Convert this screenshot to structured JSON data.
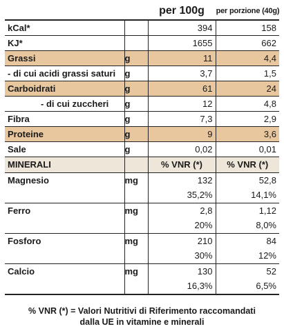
{
  "header": {
    "per100": "per 100g",
    "perPortion": "per porzione (40g)"
  },
  "nutrients": [
    {
      "name": "kCal*",
      "unit": "",
      "v100": "394",
      "vPortion": "158",
      "highlight": false,
      "indent": false
    },
    {
      "name": "KJ*",
      "unit": "",
      "v100": "1655",
      "vPortion": "662",
      "highlight": false,
      "indent": false
    },
    {
      "name": "Grassi",
      "unit": "g",
      "v100": "11",
      "vPortion": "4,4",
      "highlight": true,
      "indent": false
    },
    {
      "name": "- di cui acidi grassi saturi",
      "unit": "g",
      "v100": "3,7",
      "vPortion": "1,5",
      "highlight": false,
      "indent": false
    },
    {
      "name": "Carboidrati",
      "unit": "g",
      "v100": "61",
      "vPortion": "24",
      "highlight": true,
      "indent": false
    },
    {
      "name": "- di cui zuccheri",
      "unit": "g",
      "v100": "12",
      "vPortion": "4,8",
      "highlight": false,
      "indent": true
    },
    {
      "name": "Fibra",
      "unit": "g",
      "v100": "7,3",
      "vPortion": "2,9",
      "highlight": false,
      "indent": false
    },
    {
      "name": "Proteine",
      "unit": "g",
      "v100": "9",
      "vPortion": "3,6",
      "highlight": true,
      "indent": false
    },
    {
      "name": "Sale",
      "unit": "g",
      "v100": "0,02",
      "vPortion": "0,01",
      "highlight": false,
      "indent": false
    }
  ],
  "minerals_header": {
    "label": "MINERALI",
    "col1": "% VNR (*)",
    "col2": "% VNR (*)"
  },
  "minerals": [
    {
      "name": "Magnesio",
      "unit": "mg",
      "v100": "132",
      "vnr100": "35,2%",
      "vPortion": "52,8",
      "vnrPortion": "14,1%"
    },
    {
      "name": "Ferro",
      "unit": "mg",
      "v100": "2,8",
      "vnr100": "20%",
      "vPortion": "1,12",
      "vnrPortion": "8,0%"
    },
    {
      "name": "Fosforo",
      "unit": "mg",
      "v100": "210",
      "vnr100": "30%",
      "vPortion": "84",
      "vnrPortion": "12%"
    },
    {
      "name": "Calcio",
      "unit": "mg",
      "v100": "130",
      "vnr100": "16,3%",
      "vPortion": "52",
      "vnrPortion": "6,5%"
    }
  ],
  "footer": {
    "line1": "% VNR (*) = Valori Nutritivi di Riferimento raccomandati",
    "line2": "dalla UE in vitamine e minerali"
  },
  "colors": {
    "highlight": "#e8c79f",
    "mineralsHeader": "#eee6d9",
    "border": "#222222"
  }
}
